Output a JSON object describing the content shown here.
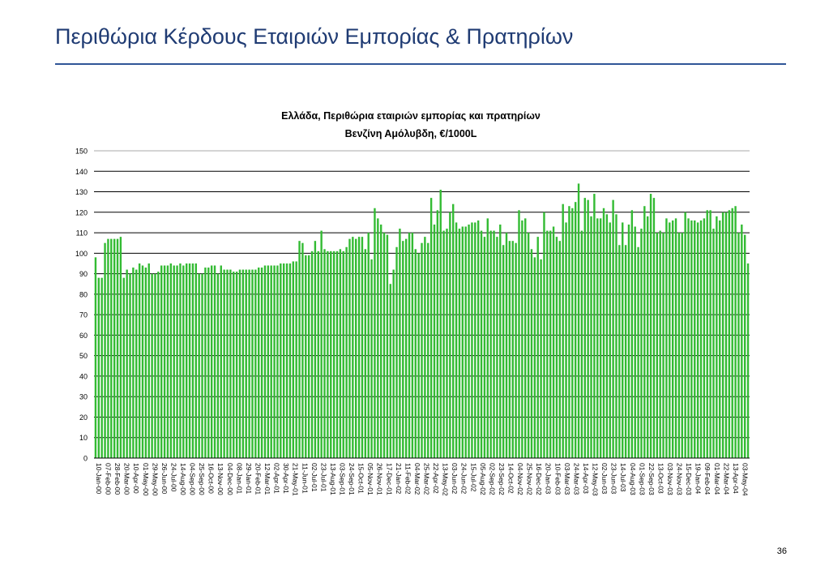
{
  "page": {
    "title": "Περιθώρια Κέρδους Εταιριών Εμπορίας & Πρατηρίων",
    "page_number": "36"
  },
  "colors": {
    "title": "#1f3b73",
    "rule": "#2f5597",
    "bar": "#33bb33",
    "gridline": "#000000"
  },
  "chart_data": {
    "type": "bar",
    "title": "Ελλάδα, Περιθώρια εταιριών εμπορίας και πρατηρίων",
    "subtitle": "Βενζίνη Αμόλυβδη, €/1000L",
    "ylim": [
      0,
      150
    ],
    "y_ticks": [
      0,
      10,
      20,
      30,
      40,
      50,
      60,
      70,
      80,
      90,
      100,
      110,
      120,
      130,
      140,
      150
    ],
    "grid": true,
    "legend": "none",
    "x_tick_labels": [
      "10-Jan-00",
      "07-Feb-00",
      "28-Feb-00",
      "20-Mar-00",
      "10-Apr-00",
      "01-May-00",
      "29-May-00",
      "26-Jun-00",
      "24-Jul-00",
      "14-Aug-00",
      "04-Sep-00",
      "25-Sep-00",
      "16-Oct-00",
      "13-Nov-00",
      "04-Dec-00",
      "08-Jan-01",
      "29-Jan-01",
      "20-Feb-01",
      "12-Mar-01",
      "02-Apr-01",
      "30-Apr-01",
      "21-May-01",
      "11-Jun-01",
      "02-Jul-01",
      "23-Jul-01",
      "13-Aug-01",
      "03-Sep-01",
      "24-Sep-01",
      "15-Oct-01",
      "05-Nov-01",
      "26-Nov-01",
      "17-Dec-01",
      "21-Jan-02",
      "11-Feb-02",
      "04-Mar-02",
      "25-Mar-02",
      "22-Apr-02",
      "13-May-02",
      "03-Jun-02",
      "24-Jun-02",
      "15-Jul-02",
      "05-Aug-02",
      "02-Sep-02",
      "23-Sep-02",
      "14-Oct-02",
      "04-Nov-02",
      "25-Nov-02",
      "16-Dec-02",
      "20-Jan-03",
      "10-Feb-03",
      "03-Mar-03",
      "24-Mar-03",
      "14-Apr-03",
      "12-May-03",
      "02-Jun-03",
      "23-Jun-03",
      "14-Jul-03",
      "04-Aug-03",
      "01-Sep-03",
      "22-Sep-03",
      "13-Oct-03",
      "03-Nov-03",
      "24-Nov-03",
      "15-Dec-03",
      "19-Jan-04",
      "09-Feb-04",
      "01-Mar-04",
      "22-Mar-04",
      "13-Apr-04",
      "03-May-04"
    ],
    "values": [
      98,
      88,
      88,
      105,
      107,
      107,
      107,
      107,
      108,
      88,
      92,
      90,
      93,
      92,
      95,
      94,
      93,
      95,
      90,
      90,
      91,
      94,
      94,
      94,
      95,
      94,
      94,
      95,
      94,
      95,
      95,
      95,
      95,
      90,
      90,
      93,
      93,
      94,
      94,
      90,
      94,
      92,
      92,
      92,
      91,
      91,
      92,
      92,
      92,
      92,
      92,
      92,
      93,
      93,
      94,
      94,
      94,
      94,
      94,
      95,
      95,
      95,
      95,
      96,
      96,
      106,
      105,
      99,
      99,
      101,
      106,
      101,
      111,
      102,
      101,
      101,
      101,
      101,
      102,
      101,
      103,
      107,
      108,
      107,
      108,
      108,
      102,
      110,
      97,
      122,
      117,
      114,
      110,
      109,
      85,
      92,
      103,
      112,
      106,
      107,
      110,
      110,
      102,
      100,
      105,
      108,
      105,
      127,
      114,
      121,
      131,
      111,
      112,
      120,
      124,
      115,
      112,
      113,
      113,
      114,
      115,
      115,
      116,
      111,
      108,
      117,
      111,
      111,
      108,
      114,
      104,
      110,
      106,
      106,
      105,
      121,
      116,
      117,
      110,
      102,
      98,
      108,
      97,
      120,
      111,
      111,
      113,
      108,
      106,
      124,
      115,
      123,
      122,
      125,
      134,
      111,
      127,
      126,
      118,
      129,
      117,
      117,
      122,
      119,
      115,
      126,
      119,
      104,
      115,
      104,
      114,
      121,
      113,
      103,
      112,
      123,
      118,
      129,
      127,
      110,
      111,
      110,
      117,
      115,
      116,
      117,
      110,
      110,
      120,
      117,
      116,
      116,
      115,
      116,
      117,
      121,
      121,
      112,
      118,
      116,
      120,
      120,
      121,
      122,
      123,
      110,
      114,
      109,
      95
    ]
  }
}
